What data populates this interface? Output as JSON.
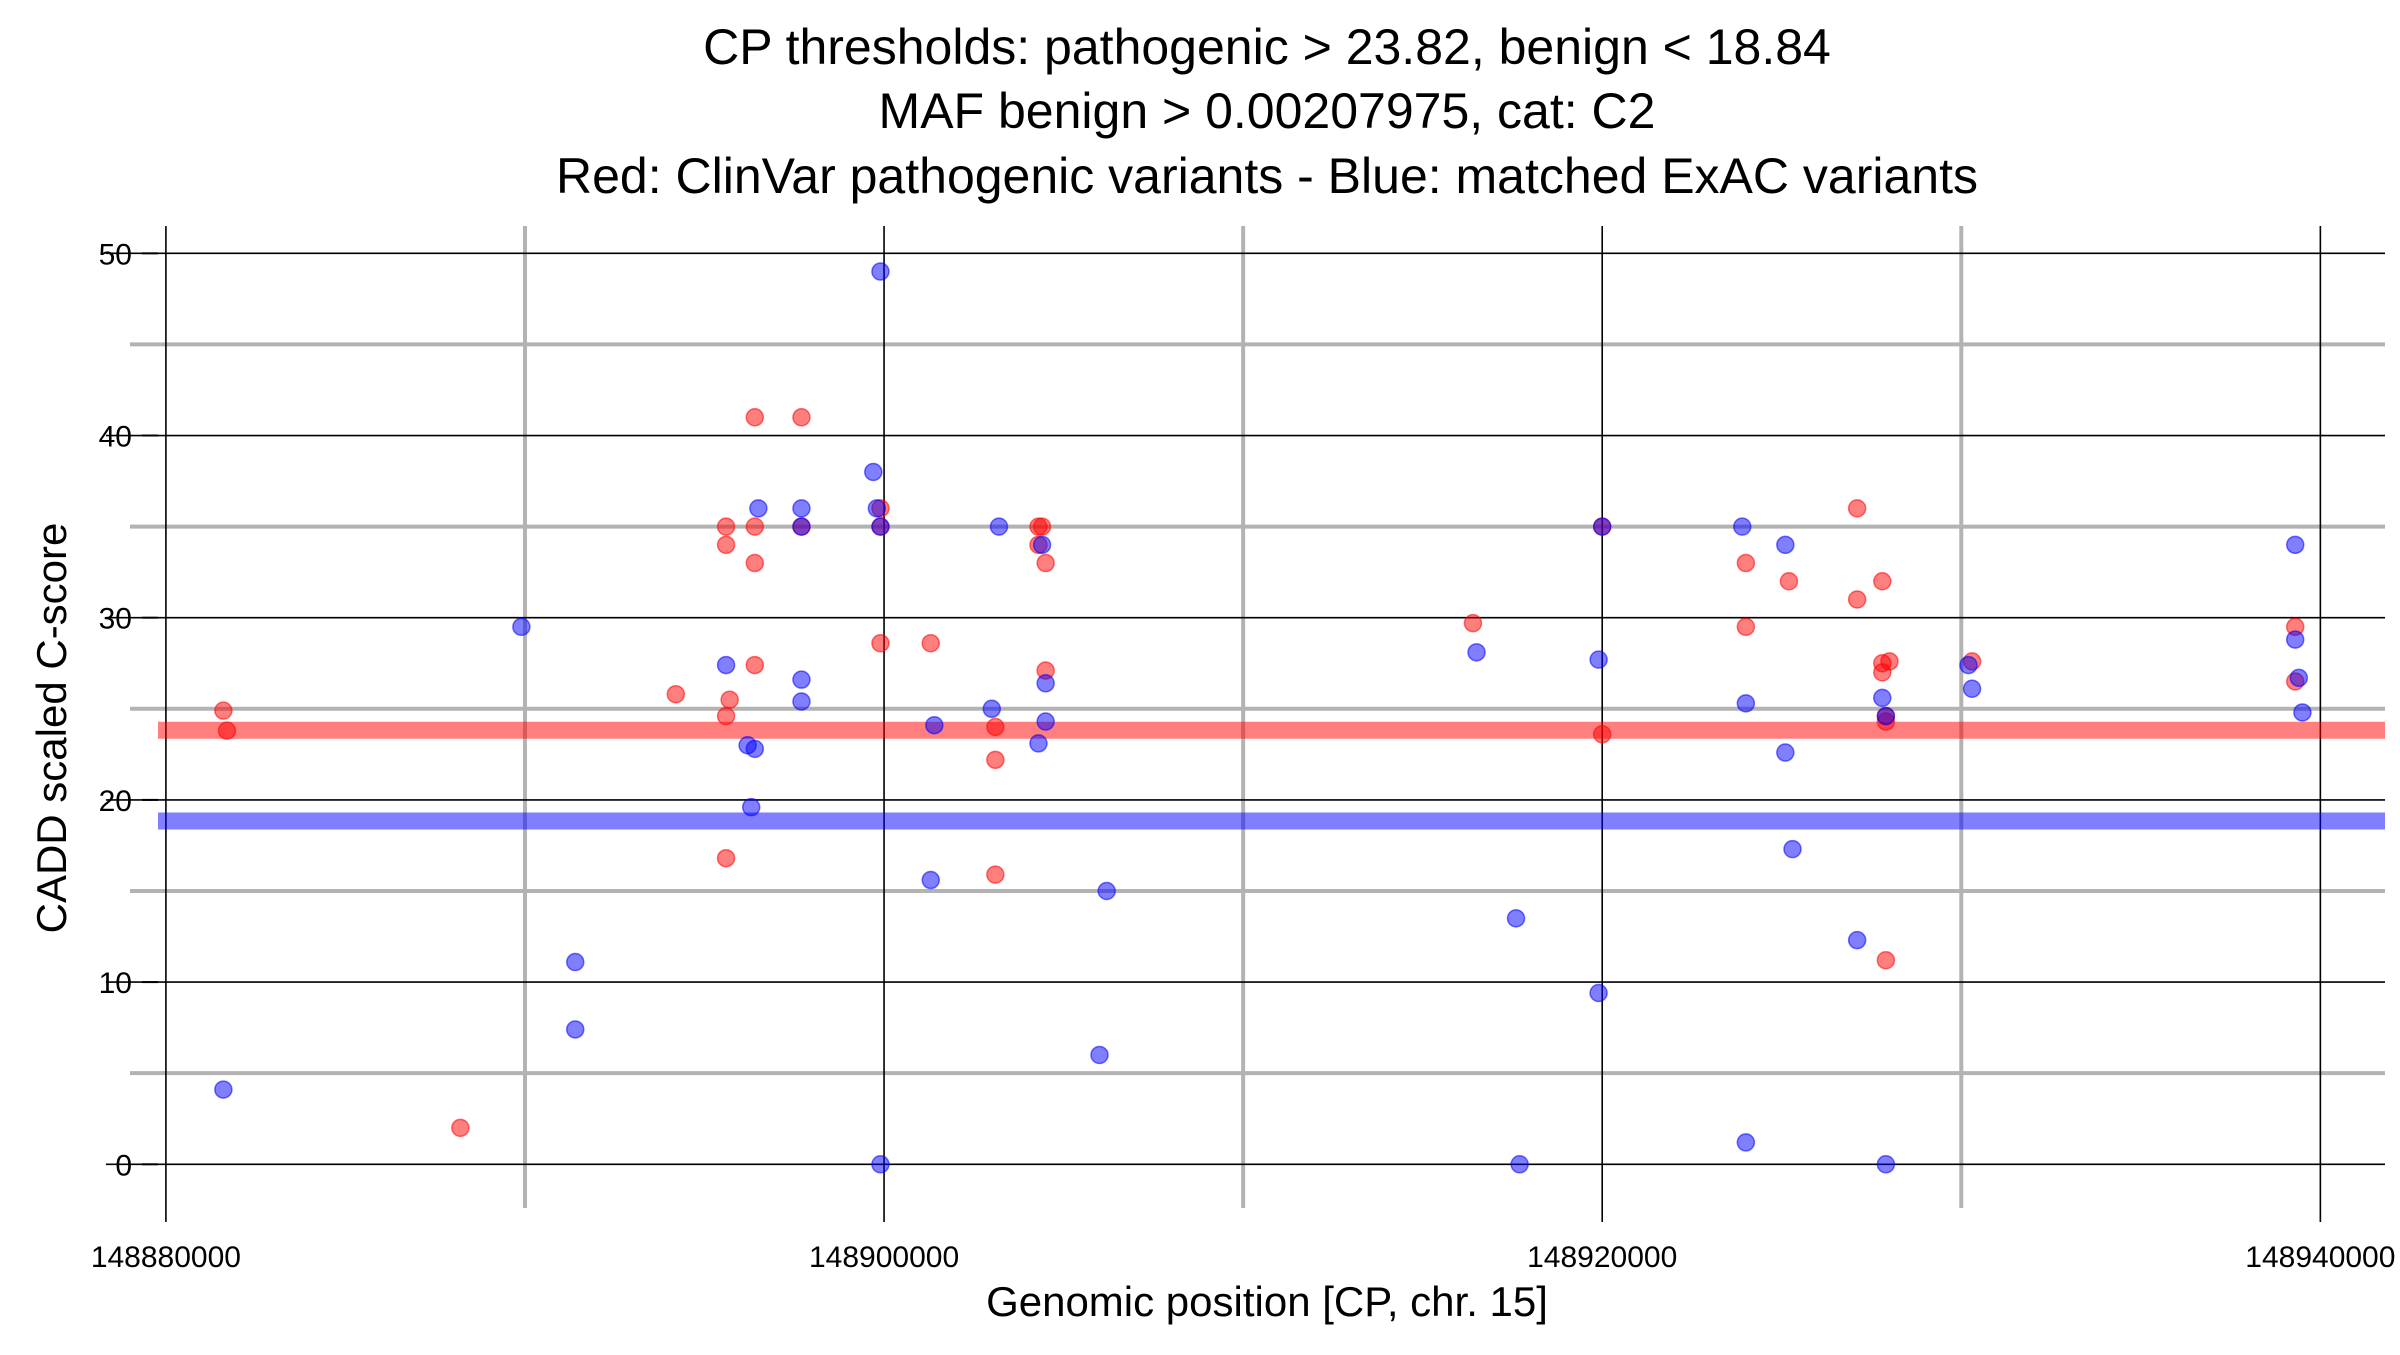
{
  "chart_data": {
    "type": "scatter",
    "title": [
      "CP thresholds: pathogenic > 23.82, benign < 18.84",
      "MAF benign > 0.00207975, cat: C2",
      "Red: ClinVar pathogenic variants - Blue: matched ExAC variants"
    ],
    "xlabel": "Genomic position [CP, chr. 15]",
    "ylabel": "CADD scaled C-score",
    "xlim": [
      148879000,
      148941800
    ],
    "ylim": [
      -2.4,
      51.5
    ],
    "x_ticks": [
      148880000,
      148900000,
      148920000,
      148940000
    ],
    "x_tick_labels": [
      "148880000",
      "148900000",
      "148920000",
      "148940000"
    ],
    "x_minor_grid": [
      148890000,
      148910000,
      148930000
    ],
    "y_ticks": [
      0,
      10,
      20,
      30,
      40,
      50
    ],
    "y_tick_labels": [
      "0",
      "10",
      "20",
      "30",
      "40",
      "50"
    ],
    "y_minor_grid": [
      5,
      15,
      25,
      35,
      45
    ],
    "grid": true,
    "thresholds": [
      {
        "name": "pathogenic",
        "value": 23.82,
        "color": "#ff0000"
      },
      {
        "name": "benign",
        "value": 18.84,
        "color": "#0000ff"
      }
    ],
    "colors": {
      "pathogenic": "#ff0000",
      "benign": "#0000ff",
      "major_grid": "#000000",
      "minor_grid": "#b3b3b3"
    },
    "series": [
      {
        "name": "ClinVar pathogenic variants",
        "color": "#ff0000",
        "points": [
          [
            148881600,
            24.9
          ],
          [
            148881700,
            23.8
          ],
          [
            148888200,
            2.0
          ],
          [
            148894200,
            25.8
          ],
          [
            148895600,
            35.0
          ],
          [
            148895600,
            34.0
          ],
          [
            148895600,
            24.6
          ],
          [
            148895600,
            16.8
          ],
          [
            148895700,
            25.5
          ],
          [
            148896400,
            41.0
          ],
          [
            148896400,
            35.0
          ],
          [
            148896400,
            33.0
          ],
          [
            148896400,
            27.4
          ],
          [
            148897700,
            41.0
          ],
          [
            148897700,
            35.0
          ],
          [
            148899900,
            36.0
          ],
          [
            148899900,
            35.0
          ],
          [
            148899900,
            28.6
          ],
          [
            148901300,
            28.6
          ],
          [
            148903100,
            24.0
          ],
          [
            148903100,
            22.2
          ],
          [
            148903100,
            15.9
          ],
          [
            148904300,
            35.0
          ],
          [
            148904400,
            35.0
          ],
          [
            148904300,
            34.0
          ],
          [
            148904500,
            33.0
          ],
          [
            148904500,
            27.1
          ],
          [
            148916400,
            29.7
          ],
          [
            148920000,
            35.0
          ],
          [
            148920000,
            23.6
          ],
          [
            148924000,
            33.0
          ],
          [
            148924000,
            29.5
          ],
          [
            148925200,
            32.0
          ],
          [
            148927100,
            36.0
          ],
          [
            148927100,
            31.0
          ],
          [
            148927800,
            32.0
          ],
          [
            148927800,
            27.5
          ],
          [
            148927800,
            27.0
          ],
          [
            148928000,
            27.6
          ],
          [
            148927900,
            24.6
          ],
          [
            148927900,
            24.3
          ],
          [
            148927900,
            11.2
          ],
          [
            148930300,
            27.6
          ],
          [
            148939300,
            29.5
          ],
          [
            148939300,
            26.5
          ]
        ]
      },
      {
        "name": "matched ExAC variants",
        "color": "#0000ff",
        "points": [
          [
            148881600,
            4.1
          ],
          [
            148889900,
            29.5
          ],
          [
            148891400,
            11.1
          ],
          [
            148891400,
            7.4
          ],
          [
            148895600,
            27.4
          ],
          [
            148896200,
            23.0
          ],
          [
            148896400,
            22.8
          ],
          [
            148896300,
            19.6
          ],
          [
            148896500,
            36.0
          ],
          [
            148897700,
            36.0
          ],
          [
            148897700,
            35.0
          ],
          [
            148897700,
            26.6
          ],
          [
            148897700,
            25.4
          ],
          [
            148899700,
            38.0
          ],
          [
            148899800,
            36.0
          ],
          [
            148899900,
            35.0
          ],
          [
            148899900,
            49.0
          ],
          [
            148899900,
            0.0
          ],
          [
            148901300,
            15.6
          ],
          [
            148901400,
            24.1
          ],
          [
            148903000,
            25.0
          ],
          [
            148903200,
            35.0
          ],
          [
            148904300,
            23.1
          ],
          [
            148904400,
            34.0
          ],
          [
            148904500,
            26.4
          ],
          [
            148904500,
            24.3
          ],
          [
            148906000,
            6.0
          ],
          [
            148906200,
            15.0
          ],
          [
            148916500,
            28.1
          ],
          [
            148917600,
            13.5
          ],
          [
            148917700,
            0.0
          ],
          [
            148919900,
            27.7
          ],
          [
            148919900,
            9.4
          ],
          [
            148920000,
            35.0
          ],
          [
            148923900,
            35.0
          ],
          [
            148924000,
            25.3
          ],
          [
            148924000,
            1.2
          ],
          [
            148925100,
            34.0
          ],
          [
            148925100,
            22.6
          ],
          [
            148925300,
            17.3
          ],
          [
            148927100,
            12.3
          ],
          [
            148927800,
            25.6
          ],
          [
            148927900,
            24.6
          ],
          [
            148927900,
            0.0
          ],
          [
            148930200,
            27.4
          ],
          [
            148930300,
            26.1
          ],
          [
            148939300,
            34.0
          ],
          [
            148939300,
            28.8
          ],
          [
            148939400,
            26.7
          ],
          [
            148939500,
            24.8
          ]
        ]
      }
    ]
  }
}
